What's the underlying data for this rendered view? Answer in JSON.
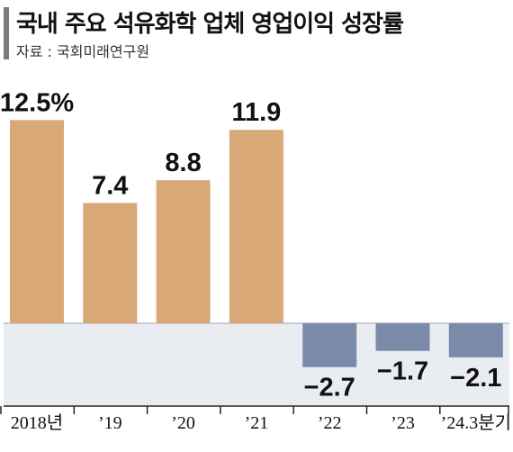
{
  "header": {
    "title": "국내 주요 석유화학 업체 영업이익 성장률",
    "source": "자료 : 국회미래연구원"
  },
  "colors": {
    "positive": "#d9a877",
    "negative": "#7a8aa9",
    "negative_band": "#e9ecf1",
    "axis": "#222222"
  },
  "chart_data": {
    "type": "bar",
    "title": "국내 주요 석유화학 업체 영업이익 성장률",
    "categories": [
      "2018년",
      "’19",
      "’20",
      "’21",
      "’22",
      "’23",
      "’24.3분기"
    ],
    "values": [
      12.5,
      7.4,
      8.8,
      11.9,
      -2.7,
      -1.7,
      -2.1
    ],
    "value_labels": [
      "12.5%",
      "7.4",
      "8.8",
      "11.9",
      "−2.7",
      "−1.7",
      "−2.1"
    ],
    "unit": "%",
    "ylim": [
      -4,
      13.5
    ],
    "grid": false,
    "legend": "none"
  }
}
